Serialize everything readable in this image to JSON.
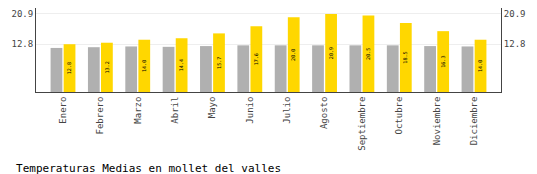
{
  "chart_data": {
    "type": "bar",
    "title": "Temperaturas Medias en mollet del valles",
    "categories": [
      "Enero",
      "Febrero",
      "Marzo",
      "Abril",
      "Mayo",
      "Junio",
      "Julio",
      "Agosto",
      "Septiembre",
      "Octubre",
      "Noviembre",
      "Diciembre"
    ],
    "series": [
      {
        "color": "#B0B0B0",
        "values": [
          11.8,
          12.0,
          12.2,
          12.1,
          12.3,
          12.5,
          12.5,
          12.5,
          12.5,
          12.5,
          12.3,
          12.2
        ]
      },
      {
        "color": "#FFD700",
        "values": [
          12.8,
          13.2,
          14.0,
          14.4,
          15.7,
          17.6,
          20.0,
          20.9,
          20.5,
          18.5,
          16.3,
          14.0
        ],
        "value_labels": [
          "12.8",
          "13.2",
          "14.0",
          "14.4",
          "15.7",
          "17.6",
          "20.0",
          "20.9",
          "20.5",
          "18.5",
          "16.3",
          "14.0"
        ],
        "data_labels": true
      }
    ],
    "ylim": [
      0,
      22.5
    ],
    "yticks": [
      12.8,
      20.9
    ],
    "y2lim": [
      0,
      22.5
    ],
    "y2ticks": [
      12.8,
      20.9
    ],
    "grid": true
  }
}
